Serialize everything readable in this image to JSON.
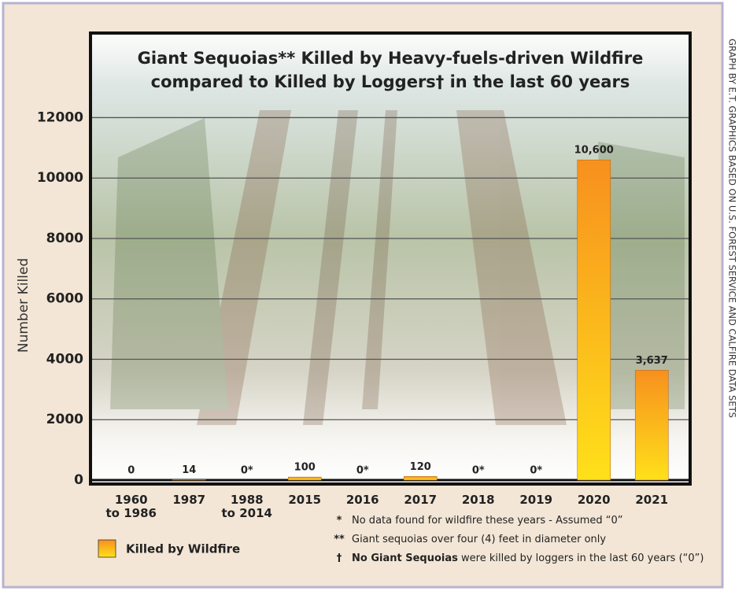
{
  "chart_data": {
    "type": "bar",
    "title": [
      "Giant Sequoias**  Killed by Heavy-fuels-driven Wildfire",
      "compared to Killed by Loggers† in the last 60 years"
    ],
    "y_label": "Number Killed",
    "categories": [
      "1960\nto 1986",
      "1987",
      "1988\nto 2014",
      "2015",
      "2016",
      "2017",
      "2018",
      "2019",
      "2020",
      "2021"
    ],
    "values": [
      0,
      14,
      0,
      100,
      0,
      120,
      0,
      0,
      10600,
      3637
    ],
    "value_labels": [
      "0",
      "14",
      "0*",
      "100",
      "0*",
      "120",
      "0*",
      "0*",
      "10,600",
      "3,637"
    ],
    "series_name": "Killed by Wildfire",
    "color": [
      "#f7901e",
      "#ffe01a"
    ],
    "ylim": [
      0,
      14800
    ],
    "yticks": [
      0,
      2000,
      4000,
      6000,
      8000,
      10000,
      12000
    ],
    "grid": true,
    "footnotes": [
      {
        "mark": "*",
        "text": "No data found for wildfire these years - Assumed “0”"
      },
      {
        "mark": "**",
        "text": "Giant sequoias over four (4) feet in diameter only"
      },
      {
        "mark": "†",
        "bold": "No Giant Sequoias",
        "text": "were killed by loggers in the last 60 years (“0”)"
      }
    ],
    "credit": "GRAPH BY E.T. GRAPHICS BASED ON U.S. FOREST SERVICE AND CALFIRE DATA SETS"
  }
}
